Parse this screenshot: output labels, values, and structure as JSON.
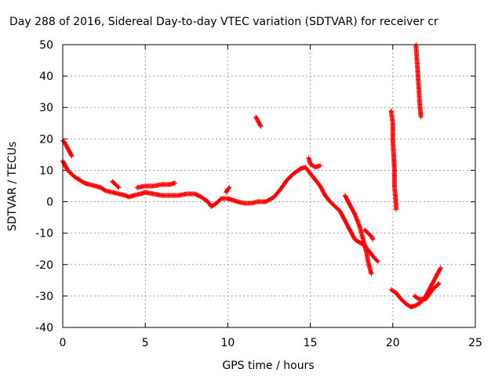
{
  "chart_data": {
    "type": "scatter",
    "title": "Day 288 of 2016, Sidereal Day-to-day VTEC variation (SDTVAR) for receiver cr",
    "xlabel": "GPS time / hours",
    "ylabel": "SDTVAR / TECUs",
    "xlim": [
      0,
      25
    ],
    "ylim": [
      -40,
      50
    ],
    "xticks": [
      0,
      5,
      10,
      15,
      20,
      25
    ],
    "yticks": [
      -40,
      -30,
      -20,
      -10,
      0,
      10,
      20,
      30,
      40,
      50
    ],
    "grid": true,
    "legend": "none",
    "marker": "+",
    "color": "#ff0000",
    "series": [
      {
        "points": [
          [
            0.0,
            19.5
          ],
          [
            0.1,
            19.0
          ],
          [
            0.2,
            18.0
          ],
          [
            0.3,
            17.0
          ],
          [
            0.4,
            16.0
          ],
          [
            0.5,
            15.0
          ],
          [
            0.55,
            14.5
          ]
        ]
      },
      {
        "points": [
          [
            0.0,
            13.0
          ],
          [
            0.1,
            12.0
          ],
          [
            0.2,
            11.0
          ],
          [
            0.3,
            10.0
          ],
          [
            0.5,
            9.0
          ],
          [
            0.7,
            8.0
          ],
          [
            1.0,
            7.0
          ],
          [
            1.3,
            6.0
          ],
          [
            1.6,
            5.5
          ],
          [
            2.0,
            5.0
          ],
          [
            2.3,
            4.5
          ],
          [
            2.6,
            3.5
          ],
          [
            3.0,
            3.0
          ],
          [
            3.4,
            2.5
          ],
          [
            3.8,
            2.0
          ],
          [
            4.0,
            1.5
          ],
          [
            4.3,
            2.0
          ],
          [
            4.7,
            2.5
          ],
          [
            5.0,
            3.0
          ],
          [
            5.5,
            2.5
          ],
          [
            6.0,
            2.0
          ],
          [
            6.5,
            2.0
          ],
          [
            7.0,
            2.0
          ],
          [
            7.5,
            2.5
          ],
          [
            8.0,
            2.5
          ],
          [
            8.4,
            1.5
          ],
          [
            8.8,
            0.0
          ],
          [
            9.0,
            -1.5
          ],
          [
            9.3,
            -0.5
          ],
          [
            9.6,
            1.0
          ],
          [
            10.0,
            1.0
          ],
          [
            10.3,
            0.5
          ],
          [
            10.6,
            0.0
          ],
          [
            11.0,
            -0.5
          ],
          [
            11.4,
            -0.5
          ],
          [
            11.8,
            0.0
          ],
          [
            12.3,
            0.0
          ],
          [
            12.8,
            1.5
          ],
          [
            13.2,
            4.0
          ],
          [
            13.6,
            7.0
          ],
          [
            14.0,
            9.0
          ],
          [
            14.4,
            10.5
          ],
          [
            14.7,
            11.0
          ],
          [
            15.0,
            9.0
          ],
          [
            15.3,
            7.0
          ],
          [
            15.6,
            5.0
          ],
          [
            15.9,
            2.0
          ],
          [
            16.2,
            0.0
          ],
          [
            16.5,
            -1.5
          ],
          [
            16.8,
            -3.0
          ],
          [
            17.1,
            -6.0
          ],
          [
            17.4,
            -9.0
          ],
          [
            17.7,
            -12.0
          ],
          [
            18.0,
            -13.0
          ],
          [
            18.3,
            -14.0
          ],
          [
            18.6,
            -16.0
          ],
          [
            18.9,
            -18.0
          ],
          [
            19.1,
            -19.0
          ]
        ]
      },
      {
        "points": [
          [
            3.0,
            6.5
          ],
          [
            3.2,
            5.5
          ],
          [
            3.4,
            4.5
          ]
        ]
      },
      {
        "points": [
          [
            4.5,
            4.5
          ],
          [
            5.0,
            5.0
          ],
          [
            5.5,
            5.0
          ],
          [
            6.0,
            5.5
          ],
          [
            6.5,
            5.5
          ],
          [
            6.8,
            6.0
          ]
        ]
      },
      {
        "points": [
          [
            9.9,
            3.0
          ],
          [
            10.0,
            4.0
          ],
          [
            10.1,
            4.5
          ]
        ]
      },
      {
        "points": [
          [
            11.7,
            27.0
          ],
          [
            11.8,
            26.0
          ],
          [
            11.9,
            25.0
          ],
          [
            12.0,
            24.0
          ]
        ]
      },
      {
        "points": [
          [
            14.9,
            14.0
          ],
          [
            15.0,
            12.0
          ],
          [
            15.3,
            11.0
          ],
          [
            15.6,
            11.5
          ]
        ]
      },
      {
        "points": [
          [
            17.1,
            2.0
          ],
          [
            17.4,
            -1.0
          ],
          [
            17.7,
            -4.0
          ],
          [
            18.0,
            -8.0
          ],
          [
            18.2,
            -12.0
          ],
          [
            18.4,
            -16.0
          ],
          [
            18.5,
            -19.0
          ],
          [
            18.6,
            -21.0
          ],
          [
            18.7,
            -23.0
          ]
        ]
      },
      {
        "points": [
          [
            18.3,
            -9.0
          ],
          [
            18.5,
            -10.0
          ],
          [
            18.7,
            -11.0
          ],
          [
            18.8,
            -12.0
          ]
        ]
      },
      {
        "points": [
          [
            19.9,
            29.0
          ],
          [
            20.0,
            25.0
          ],
          [
            20.0,
            20.0
          ],
          [
            20.05,
            15.0
          ],
          [
            20.1,
            10.0
          ],
          [
            20.1,
            5.0
          ],
          [
            20.15,
            2.0
          ],
          [
            20.2,
            -1.0
          ],
          [
            20.2,
            -2.5
          ]
        ]
      },
      {
        "points": [
          [
            21.4,
            50.0
          ],
          [
            21.45,
            46.0
          ],
          [
            21.5,
            42.0
          ],
          [
            21.55,
            38.0
          ],
          [
            21.6,
            34.0
          ],
          [
            21.65,
            30.0
          ],
          [
            21.7,
            27.0
          ]
        ]
      },
      {
        "points": [
          [
            19.9,
            -28.0
          ],
          [
            20.2,
            -29.0
          ],
          [
            20.5,
            -31.0
          ],
          [
            20.8,
            -32.5
          ],
          [
            21.1,
            -33.5
          ],
          [
            21.4,
            -33.0
          ],
          [
            21.7,
            -32.0
          ],
          [
            22.0,
            -30.0
          ],
          [
            22.3,
            -27.0
          ],
          [
            22.6,
            -24.0
          ],
          [
            22.9,
            -21.0
          ]
        ]
      },
      {
        "points": [
          [
            21.3,
            -30.0
          ],
          [
            21.6,
            -31.0
          ],
          [
            22.0,
            -31.0
          ],
          [
            22.4,
            -28.0
          ],
          [
            22.8,
            -26.0
          ]
        ]
      }
    ]
  }
}
